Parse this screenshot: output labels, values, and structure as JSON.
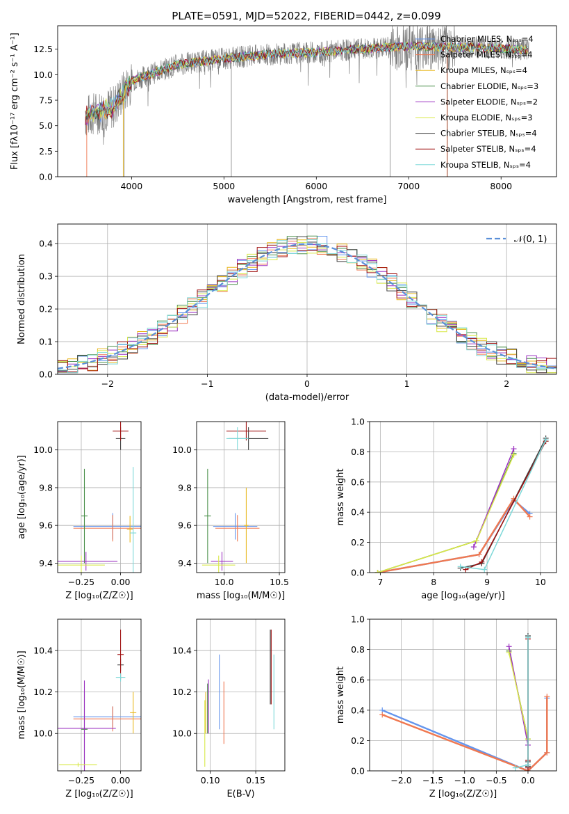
{
  "figure": {
    "suptitle": "PLATE=0591, MJD=52022, FIBERID=0442, z=0.099"
  },
  "colors": [
    "#6495ed",
    "#f07850",
    "#e8b820",
    "#4a8f4a",
    "#9b30c0",
    "#d8e848",
    "#404040",
    "#a01010",
    "#7cd8d8"
  ],
  "legend_series": [
    "Chabrier MILES, Nₛₚₛ=4",
    "Salpeter MILES, Nₛₚₛ=4",
    "Kroupa MILES, Nₛₚₛ=4",
    "Chabrier ELODIE, Nₛₚₛ=3",
    "Salpeter ELODIE, Nₛₚₛ=2",
    "Kroupa ELODIE, Nₛₚₛ=3",
    "Chabrier STELIB, Nₛₚₛ=4",
    "Salpeter STELIB, Nₛₚₛ=4",
    "Kroupa STELIB, Nₛₚₛ=4"
  ],
  "chart_data": [
    {
      "id": "spectrum",
      "type": "line",
      "xlabel": "wavelength [Angstrom, rest frame]",
      "ylabel": "Flux [fλ10⁻¹⁷ erg cm⁻² s⁻¹ A⁻¹]",
      "xlim": [
        3200,
        8600
      ],
      "ylim": [
        0,
        14.8
      ],
      "xticks": [
        "4000",
        "5000",
        "6000",
        "7000",
        "8000"
      ],
      "yticks": [
        "0.0",
        "2.5",
        "5.0",
        "7.5",
        "10.0",
        "12.5"
      ],
      "continuum": {
        "x": [
          3500,
          3800,
          4000,
          4500,
          5000,
          5500,
          6000,
          6500,
          7000,
          7500,
          8000,
          8300
        ],
        "y": [
          5.9,
          6.8,
          9.4,
          11.0,
          11.6,
          12.0,
          12.2,
          12.5,
          12.8,
          12.7,
          12.6,
          12.4
        ]
      },
      "legend_location": "right"
    },
    {
      "id": "residuals",
      "type": "step",
      "xlabel": "(data-model)/error",
      "ylabel": "Normed distribution",
      "xlim": [
        -2.5,
        2.5
      ],
      "ylim": [
        0,
        0.46
      ],
      "xticks": [
        "−2",
        "−1",
        "0",
        "1",
        "2"
      ],
      "yticks": [
        "0.0",
        "0.1",
        "0.2",
        "0.3",
        "0.4"
      ],
      "bin_width": 0.1,
      "reference_label": "𝒩(0, 1)",
      "grid": true,
      "legend_location": "top-right"
    },
    {
      "id": "age-z",
      "type": "errorbar",
      "xlabel": "Z [log₁₀(Z/Z☉)]",
      "ylabel": "age  [log₁₀(age/yr)]",
      "xlim": [
        -0.4,
        0.13
      ],
      "ylim": [
        9.35,
        10.15
      ],
      "xticks": [
        "−0.25",
        "0.00"
      ],
      "yticks": [
        "9.4",
        "9.6",
        "9.8",
        "10.0"
      ],
      "points": [
        {
          "x": -0.05,
          "xerr": 0.25,
          "y": 9.595,
          "yerr": 0.07
        },
        {
          "x": -0.05,
          "xerr": 0.25,
          "y": 9.585,
          "yerr": 0.07
        },
        {
          "x": 0.06,
          "xerr": 0.02,
          "y": 9.58,
          "yerr": 0.07
        },
        {
          "x": -0.23,
          "xerr": 0.02,
          "y": 9.65,
          "yerr": 0.25
        },
        {
          "x": -0.22,
          "xerr": 0.2,
          "y": 9.41,
          "yerr": 0.05
        },
        {
          "x": -0.25,
          "xerr": 0.15,
          "y": 9.39,
          "yerr": 0.05
        },
        {
          "x": 0.0,
          "xerr": 0.03,
          "y": 10.06,
          "yerr": 0.06
        },
        {
          "x": 0.0,
          "xerr": 0.05,
          "y": 10.1,
          "yerr": 0.05
        },
        {
          "x": 0.08,
          "xerr": 0.02,
          "y": 9.56,
          "yerr": 0.35
        }
      ]
    },
    {
      "id": "age-mass",
      "type": "errorbar",
      "xlabel": "mass [log₁₀(M/M☉)]",
      "ylabel": "",
      "xlim": [
        9.75,
        10.55
      ],
      "ylim": [
        9.35,
        10.15
      ],
      "xticks": [
        "10.0",
        "10.5"
      ],
      "yticks": [
        "9.4",
        "9.6",
        "9.8",
        "10.0"
      ],
      "points": [
        {
          "x": 10.1,
          "xerr": 0.2,
          "y": 9.595,
          "yerr": 0.07
        },
        {
          "x": 10.12,
          "xerr": 0.2,
          "y": 9.585,
          "yerr": 0.07
        },
        {
          "x": 10.2,
          "xerr": 0.02,
          "y": 9.6,
          "yerr": 0.2
        },
        {
          "x": 9.85,
          "xerr": 0.03,
          "y": 9.65,
          "yerr": 0.25
        },
        {
          "x": 9.98,
          "xerr": 0.1,
          "y": 9.41,
          "yerr": 0.05
        },
        {
          "x": 9.95,
          "xerr": 0.15,
          "y": 9.39,
          "yerr": 0.05
        },
        {
          "x": 10.22,
          "xerr": 0.18,
          "y": 10.06,
          "yerr": 0.06
        },
        {
          "x": 10.2,
          "xerr": 0.18,
          "y": 10.1,
          "yerr": 0.05
        },
        {
          "x": 10.12,
          "xerr": 0.1,
          "y": 10.06,
          "yerr": 0.06
        }
      ]
    },
    {
      "id": "weight-age",
      "type": "line",
      "xlabel": "age  [log₁₀(age/yr)]",
      "ylabel": "mass weight",
      "xlim": [
        6.8,
        10.3
      ],
      "ylim": [
        0,
        1.0
      ],
      "xticks": [
        "7",
        "8",
        "9",
        "10"
      ],
      "yticks": [
        "0.0",
        "0.2",
        "0.4",
        "0.6",
        "0.8",
        "1.0"
      ],
      "series": [
        {
          "x": [
            6.95,
            8.85,
            9.5,
            9.8
          ],
          "y": [
            0.0,
            0.12,
            0.48,
            0.39
          ]
        },
        {
          "x": [
            6.95,
            8.85,
            9.5,
            9.8
          ],
          "y": [
            0.0,
            0.12,
            0.49,
            0.37
          ]
        },
        {
          "x": [
            6.95,
            8.8,
            9.5
          ],
          "y": [
            0.0,
            0.21,
            0.79
          ]
        },
        {
          "x": [
            6.95,
            8.8,
            9.5
          ],
          "y": [
            0.0,
            0.21,
            0.79
          ]
        },
        {
          "x": [
            8.75,
            9.5
          ],
          "y": [
            0.17,
            0.82
          ]
        },
        {
          "x": [
            6.95,
            8.8,
            9.5
          ],
          "y": [
            0.0,
            0.21,
            0.78
          ]
        },
        {
          "x": [
            8.5,
            8.9,
            10.1
          ],
          "y": [
            0.03,
            0.06,
            0.89
          ]
        },
        {
          "x": [
            8.6,
            8.9,
            10.1
          ],
          "y": [
            0.02,
            0.07,
            0.87
          ]
        },
        {
          "x": [
            8.5,
            8.95,
            10.1
          ],
          "y": [
            0.04,
            0.02,
            0.88
          ]
        }
      ]
    },
    {
      "id": "mass-z",
      "type": "errorbar",
      "xlabel": "Z [log₁₀(Z/Z☉)]",
      "ylabel": "mass [log₁₀(M/M☉)]",
      "xlim": [
        -0.4,
        0.13
      ],
      "ylim": [
        9.82,
        10.55
      ],
      "xticks": [
        "−0.25",
        "0.00"
      ],
      "yticks": [
        "10.0",
        "10.2",
        "10.4"
      ],
      "points": [
        {
          "x": -0.05,
          "xerr": 0.25,
          "y": 10.08,
          "yerr": 0.05
        },
        {
          "x": -0.05,
          "xerr": 0.25,
          "y": 10.07,
          "yerr": 0.06
        },
        {
          "x": 0.08,
          "xerr": 0.02,
          "y": 10.1,
          "yerr": 0.1
        },
        {
          "x": -0.23,
          "xerr": 0.02,
          "y": 10.02,
          "yerr": 0.18
        },
        {
          "x": -0.23,
          "xerr": 0.2,
          "y": 10.025,
          "yerr": 0.23
        },
        {
          "x": -0.27,
          "xerr": 0.12,
          "y": 9.85,
          "yerr": 0.01
        },
        {
          "x": 0.0,
          "xerr": 0.02,
          "y": 10.33,
          "yerr": 0.03
        },
        {
          "x": 0.0,
          "xerr": 0.02,
          "y": 10.38,
          "yerr": 0.12
        },
        {
          "x": 0.0,
          "xerr": 0.03,
          "y": 10.27,
          "yerr": 0.02
        }
      ]
    },
    {
      "id": "mass-ebv",
      "type": "errorbar",
      "xlabel": "E(B-V)",
      "ylabel": "",
      "xlim": [
        0.085,
        0.182
      ],
      "ylim": [
        9.82,
        10.55
      ],
      "xticks": [
        "0.10",
        "0.15"
      ],
      "yticks": [
        "10.0",
        "10.2",
        "10.4"
      ],
      "points": [
        {
          "x": 0.11,
          "y": 10.2,
          "yerr": 0.18
        },
        {
          "x": 0.115,
          "y": 10.1,
          "yerr": 0.15
        },
        {
          "x": 0.095,
          "y": 10.1,
          "yerr": 0.1
        },
        {
          "x": 0.097,
          "y": 10.12,
          "yerr": 0.12
        },
        {
          "x": 0.098,
          "y": 10.13,
          "yerr": 0.13
        },
        {
          "x": 0.094,
          "y": 10.0,
          "yerr": 0.16
        },
        {
          "x": 0.166,
          "y": 10.32,
          "yerr": 0.18
        },
        {
          "x": 0.167,
          "y": 10.32,
          "yerr": 0.18
        },
        {
          "x": 0.17,
          "y": 10.2,
          "yerr": 0.18
        }
      ]
    },
    {
      "id": "weight-z",
      "type": "line",
      "xlabel": "Z [log₁₀(Z/Z☉)]",
      "ylabel": "mass weight",
      "xlim": [
        -2.5,
        0.45
      ],
      "ylim": [
        0,
        1.0
      ],
      "xticks": [
        "−2.0",
        "−1.5",
        "−1.0",
        "−0.5",
        "0.0"
      ],
      "yticks": [
        "0.0",
        "0.2",
        "0.4",
        "0.6",
        "0.8",
        "1.0"
      ],
      "series": [
        {
          "x": [
            -2.3,
            0.0,
            0.3,
            0.3
          ],
          "y": [
            0.4,
            0.0,
            0.12,
            0.48
          ]
        },
        {
          "x": [
            -2.3,
            0.0,
            0.3,
            0.3
          ],
          "y": [
            0.37,
            0.0,
            0.12,
            0.49
          ]
        },
        {
          "x": [
            -0.3,
            0.0
          ],
          "y": [
            0.79,
            0.21
          ]
        },
        {
          "x": [
            -0.3,
            0.0
          ],
          "y": [
            0.79,
            0.21
          ]
        },
        {
          "x": [
            -0.3,
            0.0
          ],
          "y": [
            0.82,
            0.17
          ]
        },
        {
          "x": [
            -0.3,
            0.0
          ],
          "y": [
            0.78,
            0.21
          ]
        },
        {
          "x": [
            0.0,
            0.0,
            0.0
          ],
          "y": [
            0.89,
            0.06,
            0.03
          ]
        },
        {
          "x": [
            0.0,
            0.0,
            0.0
          ],
          "y": [
            0.87,
            0.07,
            0.02
          ]
        },
        {
          "x": [
            -0.2,
            0.0,
            0.0
          ],
          "y": [
            0.02,
            0.04,
            0.88
          ]
        }
      ]
    }
  ]
}
